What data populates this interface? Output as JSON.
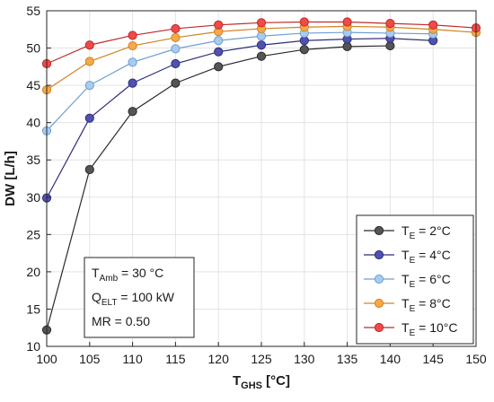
{
  "chart_data": {
    "type": "line",
    "xlabel": "T",
    "xlabel_sub": "GHS",
    "xlabel_unit": " [°C]",
    "ylabel": "DW [L/h]",
    "xlim": [
      100,
      150
    ],
    "ylim": [
      10,
      55
    ],
    "xticks": [
      100,
      105,
      110,
      115,
      120,
      125,
      130,
      135,
      140,
      145,
      150
    ],
    "yticks": [
      10,
      15,
      20,
      25,
      30,
      35,
      40,
      45,
      50,
      55
    ],
    "grid": true,
    "legend_position": "bottom-right",
    "series": [
      {
        "name_base": "T",
        "name_sub": "E",
        "name_rest": " = 2°C",
        "color": "#555555",
        "edge": "#2b2b2b",
        "x": [
          100,
          105,
          110,
          115,
          120,
          125,
          130,
          135,
          140
        ],
        "y": [
          12.2,
          33.7,
          41.5,
          45.3,
          47.5,
          48.9,
          49.8,
          50.2,
          50.3
        ]
      },
      {
        "name_base": "T",
        "name_sub": "E",
        "name_rest": " = 4°C",
        "color": "#5151b0",
        "edge": "#2e2e7a",
        "x": [
          100,
          105,
          110,
          115,
          120,
          125,
          130,
          135,
          140,
          145
        ],
        "y": [
          29.9,
          40.6,
          45.3,
          47.9,
          49.5,
          50.4,
          51.0,
          51.2,
          51.3,
          51.0
        ]
      },
      {
        "name_base": "T",
        "name_sub": "E",
        "name_rest": " = 6°C",
        "color": "#a8cbf0",
        "edge": "#6f9fd2",
        "x": [
          100,
          105,
          110,
          115,
          120,
          125,
          130,
          135,
          140,
          145
        ],
        "y": [
          38.9,
          45.0,
          48.1,
          49.9,
          51.0,
          51.6,
          52.0,
          52.1,
          52.0,
          51.9
        ]
      },
      {
        "name_base": "T",
        "name_sub": "E",
        "name_rest": " = 8°C",
        "color": "#f5a94a",
        "edge": "#d08320",
        "x": [
          100,
          105,
          110,
          115,
          120,
          125,
          130,
          135,
          140,
          145,
          150
        ],
        "y": [
          44.4,
          48.2,
          50.3,
          51.4,
          52.2,
          52.6,
          52.8,
          52.9,
          52.8,
          52.5,
          52.1
        ]
      },
      {
        "name_base": "T",
        "name_sub": "E",
        "name_rest": " = 10°C",
        "color": "#ef4a4a",
        "edge": "#c02a2a",
        "x": [
          100,
          105,
          110,
          115,
          120,
          125,
          130,
          135,
          140,
          145,
          150
        ],
        "y": [
          47.9,
          50.4,
          51.7,
          52.6,
          53.1,
          53.4,
          53.5,
          53.5,
          53.3,
          53.1,
          52.7
        ]
      }
    ],
    "annotation": {
      "line1_base": "T",
      "line1_sub": "Amb",
      "line1_rest": " = 30 °C",
      "line2_base": "Q",
      "line2_sub": "ELT",
      "line2_rest": " = 100 kW",
      "line3": "MR = 0.50"
    }
  }
}
